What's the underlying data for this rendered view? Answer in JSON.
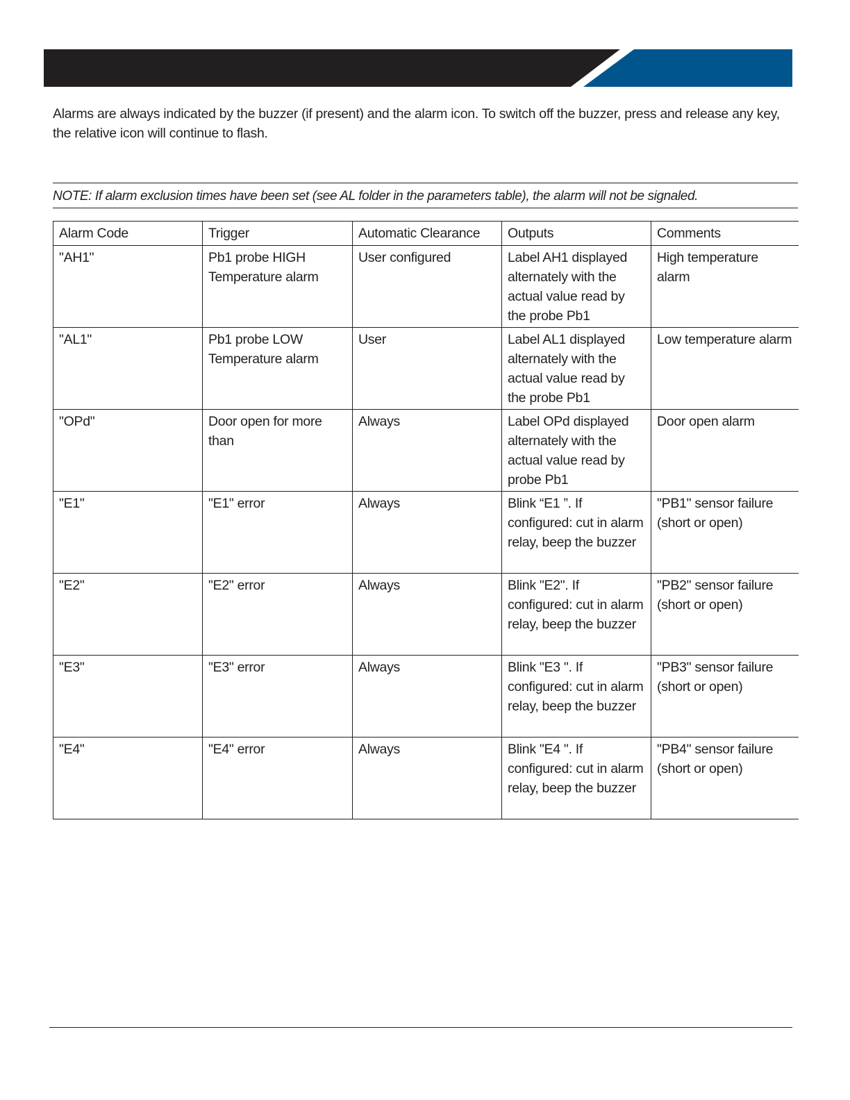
{
  "banner": {
    "dark_color": "#231f20",
    "accent_color": "#00558c"
  },
  "intro": "Alarms are always indicated by the buzzer (if present) and the alarm icon. To switch off the buzzer, press and release any key, the relative icon will continue to flash.",
  "note": "NOTE: If alarm exclusion times have been set (see AL folder in the parameters table), the alarm will not be signaled.",
  "table": {
    "headers": [
      "Alarm Code",
      "Trigger",
      "Automatic Clearance",
      "Outputs",
      "Comments"
    ],
    "rows": [
      [
        "\"AH1\"",
        "Pb1 probe HIGH Temperature alarm",
        "User configured",
        "Label AH1 displayed alternately with the actual value read by the probe Pb1",
        "High temperature alarm"
      ],
      [
        "\"AL1\"",
        "Pb1 probe LOW Temperature alarm",
        "User",
        "Label AL1 displayed alternately with the actual value read by the probe Pb1",
        "Low temperature alarm"
      ],
      [
        "\"OPd\"",
        "Door open for more than",
        "Always",
        "Label OPd displayed alternately with the actual value read by probe Pb1",
        "Door open alarm"
      ],
      [
        "\"E1\"",
        "\"E1\" error",
        "Always",
        "Blink “E1 ”. If configured: cut in alarm relay, beep the buzzer",
        "\"PB1\" sensor failure (short or open)"
      ],
      [
        "\"E2\"",
        "\"E2\" error",
        "Always",
        "Blink \"E2\". If configured: cut in alarm relay, beep the buzzer",
        "\"PB2\" sensor failure (short or open)"
      ],
      [
        "\"E3\"",
        "\"E3\" error",
        "Always",
        "Blink \"E3 \". If configured: cut in alarm relay, beep the buzzer",
        "\"PB3\" sensor failure (short or open)"
      ],
      [
        "\"E4\"",
        "\"E4\" error",
        "Always",
        "Blink \"E4 \". If configured: cut in alarm relay, beep the buzzer",
        "\"PB4\" sensor failure (short or open)"
      ]
    ]
  }
}
